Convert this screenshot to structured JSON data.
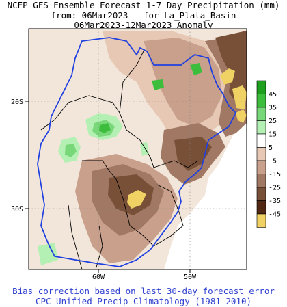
{
  "header": {
    "line1": "NCEP GFS Ensemble Forecast 1-7 Day Precipitation (mm)",
    "line2": "from: 06Mar2023   for La_Plata_Basin",
    "line3": "06Mar2023-12Mar2023 Anomaly"
  },
  "map": {
    "lat_labels": [
      "20S",
      "30S"
    ],
    "lon_labels": [
      "60W",
      "50W"
    ],
    "basin_outline_color": "#2040e0",
    "border_color": "#000000"
  },
  "legend": {
    "labels": [
      "45",
      "35",
      "25",
      "15",
      "5",
      "-5",
      "-15",
      "-25",
      "-35",
      "-45"
    ],
    "colors": [
      "#1ea01e",
      "#3cbe3c",
      "#78d778",
      "#b4f0b4",
      "#ffffff",
      "#e6c8b4",
      "#c8a08c",
      "#a07864",
      "#785038",
      "#502814",
      "#f0d264"
    ]
  },
  "footer": {
    "line1": "Bias correction based on last 30-day forecast error",
    "line2": "CPC Unified Precip Climatology (1981-2010)"
  }
}
